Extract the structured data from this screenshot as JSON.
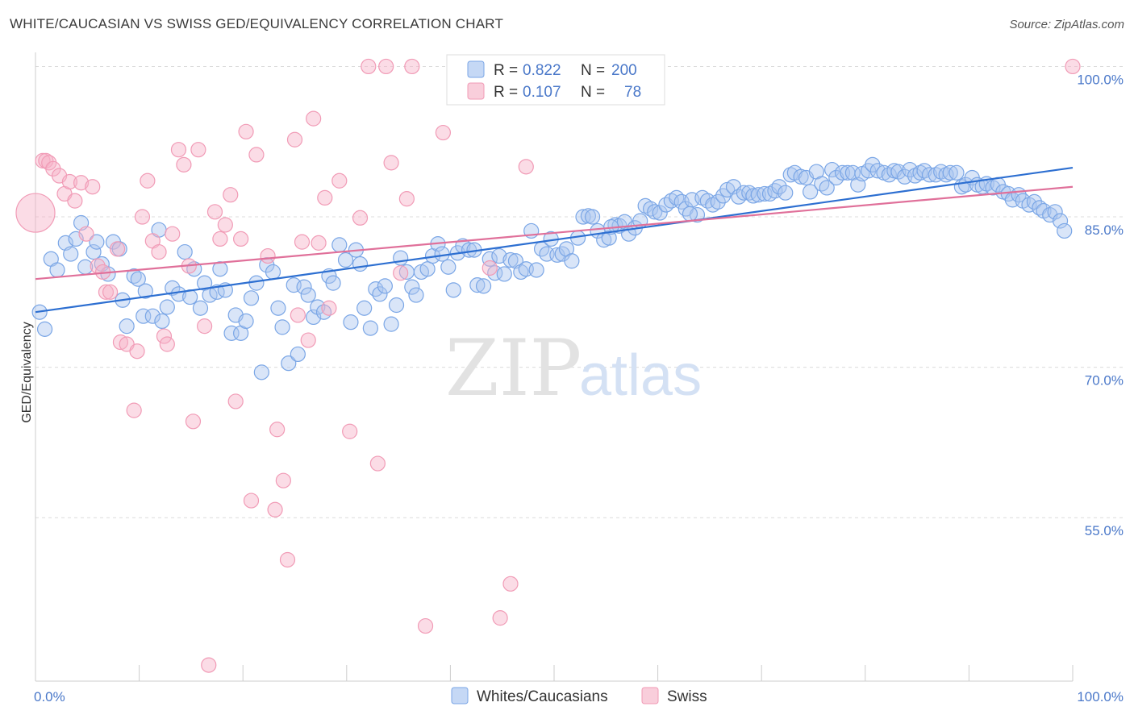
{
  "header": {
    "title": "WHITE/CAUCASIAN VS SWISS GED/EQUIVALENCY CORRELATION CHART",
    "source": "Source: ZipAtlas.com"
  },
  "watermark": {
    "zip": "ZIP",
    "atlas": "atlas"
  },
  "legend": {
    "rows": [
      {
        "r_label": "R =",
        "r_value": "0.822",
        "n_label": "N =",
        "n_value": "200",
        "color": "#7aa6e6"
      },
      {
        "r_label": "R =",
        "r_value": "0.107",
        "n_label": "N =",
        "n_value": "78",
        "color": "#f19bb6"
      }
    ]
  },
  "bottom_legend": [
    {
      "label": "Whites/Caucasians",
      "color": "#7aa6e6"
    },
    {
      "label": "Swiss",
      "color": "#f19bb6"
    }
  ],
  "chart_data": {
    "type": "scatter",
    "xlabel": "",
    "ylabel": "GED/Equivalency",
    "xlim": [
      0,
      100
    ],
    "ylim": [
      38.7,
      101
    ],
    "x_tick_labels": [
      {
        "value": 0,
        "label": "0.0%"
      },
      {
        "value": 100,
        "label": "100.0%"
      }
    ],
    "y_tick_labels": [
      {
        "value": 100,
        "label": "100.0%"
      },
      {
        "value": 85,
        "label": "85.0%"
      },
      {
        "value": 70,
        "label": "70.0%"
      },
      {
        "value": 55,
        "label": "55.0%"
      }
    ],
    "grid": true,
    "series": [
      {
        "name": "Whites/Caucasians",
        "color": "#7aa6e6",
        "trend": {
          "x": [
            0,
            100
          ],
          "y": [
            75.5,
            89.9
          ],
          "color": "#2d6fd1"
        },
        "points": [
          [
            0.4,
            75.5
          ],
          [
            0.9,
            73.8
          ],
          [
            1.5,
            80.8
          ],
          [
            2.1,
            79.7
          ],
          [
            2.9,
            82.4
          ],
          [
            3.4,
            81.3
          ],
          [
            3.9,
            82.8
          ],
          [
            4.4,
            84.4
          ],
          [
            4.8,
            80.0
          ],
          [
            5.6,
            81.5
          ],
          [
            5.9,
            82.5
          ],
          [
            6.4,
            80.3
          ],
          [
            7.0,
            79.3
          ],
          [
            7.5,
            82.5
          ],
          [
            8.1,
            81.8
          ],
          [
            8.4,
            76.7
          ],
          [
            8.8,
            74.1
          ],
          [
            9.5,
            79.1
          ],
          [
            9.9,
            78.8
          ],
          [
            10.4,
            75.1
          ],
          [
            10.6,
            77.6
          ],
          [
            11.3,
            75.1
          ],
          [
            11.9,
            83.7
          ],
          [
            12.2,
            74.6
          ],
          [
            12.7,
            76.0
          ],
          [
            13.2,
            77.9
          ],
          [
            13.8,
            77.3
          ],
          [
            14.4,
            81.5
          ],
          [
            14.9,
            77.0
          ],
          [
            15.3,
            79.8
          ],
          [
            15.9,
            75.9
          ],
          [
            16.3,
            78.4
          ],
          [
            16.8,
            77.2
          ],
          [
            17.5,
            77.5
          ],
          [
            17.8,
            79.8
          ],
          [
            18.3,
            77.7
          ],
          [
            18.9,
            73.4
          ],
          [
            19.3,
            75.2
          ],
          [
            19.8,
            73.4
          ],
          [
            20.3,
            74.6
          ],
          [
            20.8,
            76.9
          ],
          [
            21.3,
            78.4
          ],
          [
            21.8,
            69.5
          ],
          [
            22.3,
            80.2
          ],
          [
            22.9,
            79.5
          ],
          [
            23.4,
            75.9
          ],
          [
            23.8,
            74.0
          ],
          [
            24.4,
            70.4
          ],
          [
            24.9,
            78.2
          ],
          [
            25.3,
            71.3
          ],
          [
            25.9,
            78.0
          ],
          [
            26.3,
            77.2
          ],
          [
            26.8,
            75.0
          ],
          [
            27.2,
            76.0
          ],
          [
            27.8,
            75.5
          ],
          [
            28.3,
            79.1
          ],
          [
            28.7,
            78.4
          ],
          [
            29.3,
            82.2
          ],
          [
            29.9,
            80.7
          ],
          [
            30.4,
            74.5
          ],
          [
            30.9,
            81.7
          ],
          [
            31.3,
            80.3
          ],
          [
            31.7,
            75.9
          ],
          [
            32.3,
            73.9
          ],
          [
            32.8,
            77.8
          ],
          [
            33.2,
            77.3
          ],
          [
            33.7,
            78.1
          ],
          [
            34.3,
            74.3
          ],
          [
            34.8,
            76.2
          ],
          [
            35.2,
            80.9
          ],
          [
            35.8,
            79.5
          ],
          [
            36.3,
            78.0
          ],
          [
            36.7,
            77.2
          ],
          [
            37.2,
            79.5
          ],
          [
            37.8,
            79.8
          ],
          [
            38.3,
            81.1
          ],
          [
            38.8,
            82.3
          ],
          [
            39.2,
            81.3
          ],
          [
            39.8,
            80.0
          ],
          [
            40.3,
            77.7
          ],
          [
            40.7,
            81.4
          ],
          [
            41.2,
            82.1
          ],
          [
            41.8,
            81.7
          ],
          [
            42.3,
            81.7
          ],
          [
            42.6,
            78.2
          ],
          [
            43.2,
            78.1
          ],
          [
            43.8,
            80.8
          ],
          [
            44.3,
            79.4
          ],
          [
            44.7,
            81.1
          ],
          [
            45.2,
            79.3
          ],
          [
            45.8,
            80.7
          ],
          [
            46.3,
            80.6
          ],
          [
            46.8,
            79.5
          ],
          [
            47.3,
            79.8
          ],
          [
            47.8,
            83.6
          ],
          [
            48.3,
            79.7
          ],
          [
            48.8,
            81.8
          ],
          [
            49.3,
            81.3
          ],
          [
            49.7,
            82.8
          ],
          [
            50.3,
            81.2
          ],
          [
            50.8,
            81.3
          ],
          [
            51.2,
            81.8
          ],
          [
            51.7,
            80.6
          ],
          [
            52.3,
            82.9
          ],
          [
            52.8,
            85.0
          ],
          [
            53.3,
            85.1
          ],
          [
            53.7,
            85.0
          ],
          [
            54.2,
            83.6
          ],
          [
            54.8,
            82.7
          ],
          [
            55.3,
            82.9
          ],
          [
            55.9,
            84.2
          ],
          [
            56.3,
            84.1
          ],
          [
            56.8,
            84.5
          ],
          [
            57.2,
            83.3
          ],
          [
            57.8,
            83.9
          ],
          [
            58.3,
            84.6
          ],
          [
            58.8,
            86.1
          ],
          [
            59.3,
            85.8
          ],
          [
            59.7,
            85.5
          ],
          [
            60.2,
            85.4
          ],
          [
            60.8,
            86.2
          ],
          [
            61.3,
            86.6
          ],
          [
            61.8,
            86.9
          ],
          [
            62.3,
            86.5
          ],
          [
            62.7,
            85.8
          ],
          [
            63.3,
            86.7
          ],
          [
            63.8,
            85.2
          ],
          [
            64.3,
            86.9
          ],
          [
            64.8,
            86.6
          ],
          [
            65.3,
            86.2
          ],
          [
            65.8,
            86.5
          ],
          [
            66.3,
            87.1
          ],
          [
            66.7,
            87.7
          ],
          [
            67.3,
            88.0
          ],
          [
            67.8,
            87.0
          ],
          [
            68.3,
            87.4
          ],
          [
            68.8,
            87.4
          ],
          [
            69.2,
            87.1
          ],
          [
            69.7,
            87.2
          ],
          [
            70.3,
            87.3
          ],
          [
            70.8,
            87.3
          ],
          [
            71.3,
            87.6
          ],
          [
            71.7,
            88.0
          ],
          [
            72.3,
            87.4
          ],
          [
            72.8,
            89.2
          ],
          [
            73.2,
            89.4
          ],
          [
            73.8,
            89.0
          ],
          [
            74.3,
            88.9
          ],
          [
            74.7,
            87.5
          ],
          [
            75.3,
            89.5
          ],
          [
            75.8,
            88.3
          ],
          [
            76.3,
            87.9
          ],
          [
            76.8,
            89.7
          ],
          [
            77.2,
            88.9
          ],
          [
            77.8,
            89.4
          ],
          [
            78.3,
            89.4
          ],
          [
            78.8,
            89.4
          ],
          [
            79.3,
            88.2
          ],
          [
            79.7,
            89.3
          ],
          [
            80.3,
            89.6
          ],
          [
            80.7,
            90.2
          ],
          [
            81.2,
            89.6
          ],
          [
            81.8,
            89.4
          ],
          [
            82.3,
            89.2
          ],
          [
            82.8,
            89.6
          ],
          [
            83.2,
            89.5
          ],
          [
            83.8,
            89.0
          ],
          [
            84.3,
            89.7
          ],
          [
            84.8,
            89.1
          ],
          [
            85.3,
            89.4
          ],
          [
            85.7,
            89.6
          ],
          [
            86.2,
            89.2
          ],
          [
            86.8,
            89.2
          ],
          [
            87.3,
            89.5
          ],
          [
            87.8,
            89.2
          ],
          [
            88.2,
            89.4
          ],
          [
            88.8,
            89.4
          ],
          [
            89.3,
            88.0
          ],
          [
            89.7,
            88.2
          ],
          [
            90.3,
            88.9
          ],
          [
            90.8,
            88.2
          ],
          [
            91.3,
            88.0
          ],
          [
            91.7,
            88.3
          ],
          [
            92.3,
            87.9
          ],
          [
            92.8,
            88.2
          ],
          [
            93.3,
            87.5
          ],
          [
            93.8,
            87.3
          ],
          [
            94.2,
            86.7
          ],
          [
            94.8,
            87.2
          ],
          [
            95.2,
            86.6
          ],
          [
            95.8,
            86.2
          ],
          [
            96.3,
            86.5
          ],
          [
            96.8,
            85.9
          ],
          [
            97.2,
            85.6
          ],
          [
            97.8,
            85.2
          ],
          [
            98.3,
            85.5
          ],
          [
            98.8,
            84.6
          ],
          [
            99.2,
            83.6
          ],
          [
            63.1,
            85.3
          ],
          [
            55.5,
            84.0
          ]
        ]
      },
      {
        "name": "Swiss",
        "color": "#f19bb6",
        "trend": {
          "x": [
            0,
            100
          ],
          "y": [
            78.8,
            88.0
          ],
          "color": "#e0709a"
        },
        "points": [
          [
            0.7,
            90.6
          ],
          [
            1.0,
            90.6
          ],
          [
            1.3,
            90.4
          ],
          [
            1.7,
            89.8
          ],
          [
            2.3,
            89.1
          ],
          [
            2.8,
            87.3
          ],
          [
            3.3,
            88.5
          ],
          [
            3.8,
            86.6
          ],
          [
            4.4,
            88.4
          ],
          [
            4.9,
            83.3
          ],
          [
            5.5,
            88.0
          ],
          [
            6.0,
            80.1
          ],
          [
            6.5,
            79.5
          ],
          [
            6.8,
            77.5
          ],
          [
            7.2,
            77.5
          ],
          [
            7.9,
            81.8
          ],
          [
            8.2,
            72.5
          ],
          [
            8.8,
            72.3
          ],
          [
            9.5,
            65.7
          ],
          [
            9.8,
            71.6
          ],
          [
            10.3,
            85.0
          ],
          [
            10.8,
            88.6
          ],
          [
            11.3,
            82.6
          ],
          [
            11.9,
            81.5
          ],
          [
            12.4,
            73.1
          ],
          [
            12.7,
            72.3
          ],
          [
            13.2,
            83.3
          ],
          [
            13.8,
            91.7
          ],
          [
            14.3,
            90.2
          ],
          [
            14.8,
            80.1
          ],
          [
            15.2,
            64.6
          ],
          [
            15.7,
            91.7
          ],
          [
            16.3,
            74.1
          ],
          [
            16.7,
            40.3
          ],
          [
            17.3,
            85.5
          ],
          [
            17.8,
            82.8
          ],
          [
            18.3,
            84.2
          ],
          [
            18.8,
            87.2
          ],
          [
            19.3,
            66.6
          ],
          [
            19.8,
            82.8
          ],
          [
            20.3,
            93.5
          ],
          [
            20.8,
            56.7
          ],
          [
            21.3,
            91.2
          ],
          [
            22.4,
            81.1
          ],
          [
            23.1,
            55.8
          ],
          [
            23.3,
            63.8
          ],
          [
            23.9,
            58.7
          ],
          [
            24.3,
            50.8
          ],
          [
            25.0,
            92.7
          ],
          [
            25.3,
            75.2
          ],
          [
            25.7,
            82.5
          ],
          [
            26.3,
            72.7
          ],
          [
            26.8,
            94.8
          ],
          [
            27.3,
            82.4
          ],
          [
            27.9,
            86.9
          ],
          [
            28.3,
            75.9
          ],
          [
            29.3,
            88.6
          ],
          [
            30.3,
            63.6
          ],
          [
            31.3,
            84.9
          ],
          [
            32.1,
            100
          ],
          [
            33.0,
            60.4
          ],
          [
            33.8,
            100
          ],
          [
            34.3,
            90.4
          ],
          [
            35.2,
            79.4
          ],
          [
            35.8,
            86.8
          ],
          [
            36.3,
            100
          ],
          [
            37.6,
            44.2
          ],
          [
            39.3,
            93.4
          ],
          [
            41.3,
            100
          ],
          [
            43.8,
            79.9
          ],
          [
            44.8,
            45.0
          ],
          [
            45.8,
            48.4
          ],
          [
            47.3,
            90.0
          ],
          [
            49.3,
            100
          ],
          [
            50.8,
            100
          ],
          [
            51.4,
            100
          ],
          [
            52.8,
            100
          ],
          [
            100,
            100
          ]
        ]
      }
    ]
  }
}
